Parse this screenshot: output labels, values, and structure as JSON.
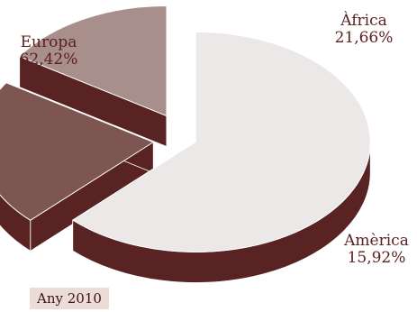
{
  "chart_data": {
    "type": "pie",
    "style": "3d-exploded",
    "slices": [
      {
        "label": "Europa",
        "value": 62.42,
        "value_label": "62,42%",
        "color": "#ece8e8",
        "side_color": "#5a2323"
      },
      {
        "label": "Àfrica",
        "value": 21.66,
        "value_label": "21,66%",
        "color": "#7d5651",
        "side_color": "#5a2323"
      },
      {
        "label": "Amèrica",
        "value": 15.92,
        "value_label": "15,92%",
        "color": "#a88f8b",
        "side_color": "#5a2323"
      }
    ]
  },
  "badge": {
    "label": "Any 2010"
  }
}
